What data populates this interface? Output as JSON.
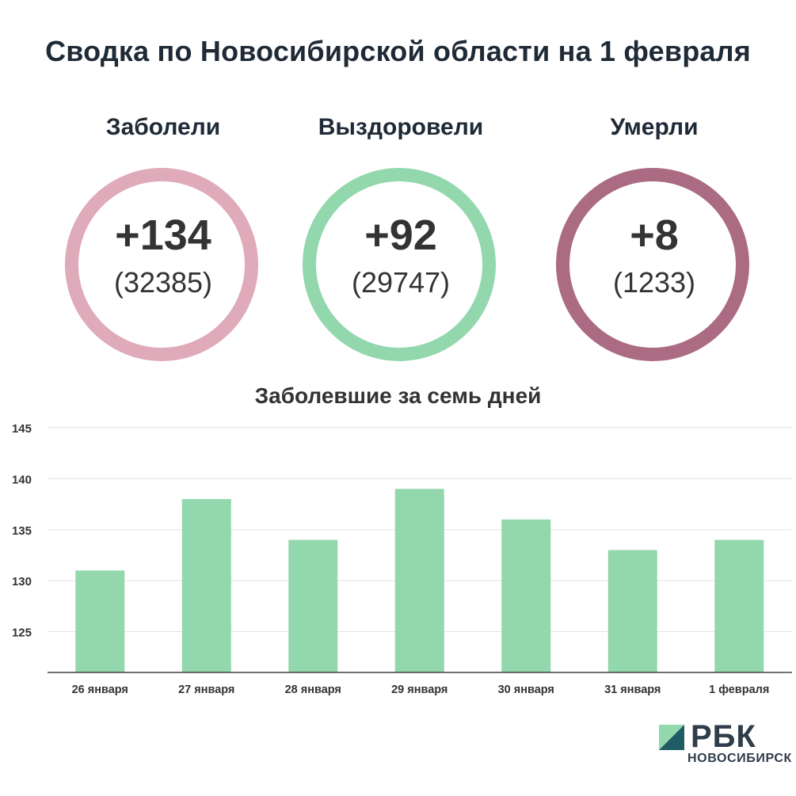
{
  "header": {
    "title": "Сводка по Новосибирской области на 1 февраля"
  },
  "stats": [
    {
      "label": "Заболели",
      "delta": "+134",
      "total": "(32385)",
      "color": "#dfaab9"
    },
    {
      "label": "Выздоровели",
      "delta": "+92",
      "total": "(29747)",
      "color": "#93d7ad"
    },
    {
      "label": "Умерли",
      "delta": "+8",
      "total": "(1233)",
      "color": "#ab6b82"
    }
  ],
  "chart_data": {
    "type": "bar",
    "title": "Заболевшие за семь дней",
    "categories": [
      "26 января",
      "27 января",
      "28 января",
      "29 января",
      "30 января",
      "31 января",
      "1 февраля"
    ],
    "values": [
      131,
      138,
      134,
      139,
      136,
      133,
      134
    ],
    "ylim": [
      121,
      145
    ],
    "yticks": [
      125,
      130,
      135,
      140,
      145
    ],
    "grid": true,
    "bar_color": "#93d7ad"
  },
  "logo": {
    "brand": "РБК",
    "region": "НОВОСИБИРСК",
    "colors": {
      "dark": "#1e5c66",
      "light": "#93d7ad"
    }
  }
}
